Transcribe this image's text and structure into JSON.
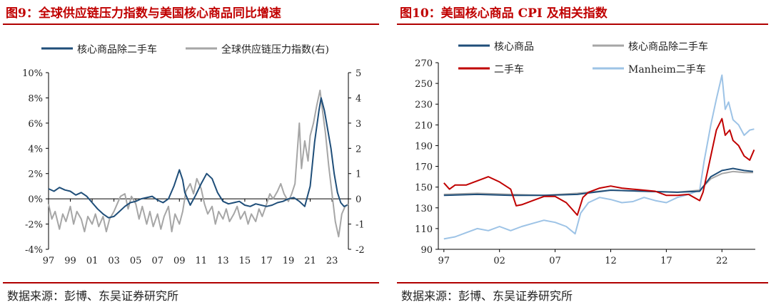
{
  "left": {
    "title": "图9：全球供应链压力指数与美国核心商品同比增速",
    "source": "数据来源：彭博、东吴证券研究所",
    "colors": {
      "series1": "#1f4e79",
      "series2": "#a6a6a6",
      "title": "#c00000"
    },
    "chart_data": {
      "type": "line",
      "title": "图9：全球供应链压力指数与美国核心商品同比增速",
      "x_range": [
        1997,
        2024.5
      ],
      "x_ticks": [
        "97",
        "99",
        "01",
        "03",
        "05",
        "07",
        "09",
        "11",
        "13",
        "15",
        "17",
        "19",
        "21",
        "23"
      ],
      "y_left": {
        "range": [
          -4,
          10
        ],
        "ticks": [
          "-4%",
          "-2%",
          "0%",
          "2%",
          "4%",
          "6%",
          "8%",
          "10%"
        ]
      },
      "y_right": {
        "range": [
          -2,
          5
        ],
        "ticks": [
          "-2",
          "-1",
          "0",
          "1",
          "2",
          "3",
          "4",
          "5"
        ]
      },
      "legend_position": "top",
      "series": [
        {
          "name": "核心商品除二手车",
          "axis": "left",
          "points": [
            [
              1997.0,
              0.8
            ],
            [
              1997.5,
              0.6
            ],
            [
              1998.0,
              0.9
            ],
            [
              1998.5,
              0.7
            ],
            [
              1999.0,
              0.6
            ],
            [
              1999.5,
              0.3
            ],
            [
              2000.0,
              0.5
            ],
            [
              2000.5,
              0.2
            ],
            [
              2001.0,
              -0.3
            ],
            [
              2001.5,
              -0.8
            ],
            [
              2002.0,
              -1.2
            ],
            [
              2002.5,
              -1.5
            ],
            [
              2003.0,
              -1.4
            ],
            [
              2003.5,
              -1.0
            ],
            [
              2004.0,
              -0.6
            ],
            [
              2004.5,
              -0.3
            ],
            [
              2005.0,
              -0.2
            ],
            [
              2005.5,
              0.0
            ],
            [
              2006.0,
              0.1
            ],
            [
              2006.5,
              0.2
            ],
            [
              2007.0,
              -0.1
            ],
            [
              2007.5,
              -0.3
            ],
            [
              2008.0,
              0.0
            ],
            [
              2008.5,
              1.0
            ],
            [
              2009.0,
              2.3
            ],
            [
              2009.3,
              1.5
            ],
            [
              2009.5,
              0.5
            ],
            [
              2010.0,
              -0.5
            ],
            [
              2010.5,
              0.3
            ],
            [
              2011.0,
              1.2
            ],
            [
              2011.5,
              2.0
            ],
            [
              2012.0,
              1.6
            ],
            [
              2012.5,
              0.5
            ],
            [
              2013.0,
              -0.2
            ],
            [
              2013.5,
              -0.4
            ],
            [
              2014.0,
              -0.3
            ],
            [
              2014.5,
              -0.2
            ],
            [
              2015.0,
              -0.5
            ],
            [
              2015.5,
              -0.6
            ],
            [
              2016.0,
              -0.4
            ],
            [
              2016.5,
              -0.5
            ],
            [
              2017.0,
              -0.6
            ],
            [
              2017.5,
              -0.5
            ],
            [
              2018.0,
              -0.3
            ],
            [
              2018.5,
              -0.2
            ],
            [
              2019.0,
              0.0
            ],
            [
              2019.5,
              0.1
            ],
            [
              2020.0,
              -0.2
            ],
            [
              2020.5,
              -0.6
            ],
            [
              2021.0,
              1.0
            ],
            [
              2021.4,
              4.5
            ],
            [
              2021.8,
              7.0
            ],
            [
              2022.0,
              8.0
            ],
            [
              2022.3,
              7.0
            ],
            [
              2022.6,
              5.5
            ],
            [
              2022.9,
              4.0
            ],
            [
              2023.2,
              2.0
            ],
            [
              2023.5,
              0.5
            ],
            [
              2023.8,
              -0.3
            ],
            [
              2024.1,
              -0.6
            ],
            [
              2024.4,
              -0.5
            ]
          ]
        },
        {
          "name": "全球供应链压力指数(右)",
          "axis": "right",
          "points": [
            [
              1997.0,
              -0.2
            ],
            [
              1997.3,
              -0.8
            ],
            [
              1997.6,
              -0.5
            ],
            [
              1998.0,
              -1.2
            ],
            [
              1998.3,
              -0.6
            ],
            [
              1998.6,
              -0.9
            ],
            [
              1999.0,
              -0.3
            ],
            [
              1999.3,
              -1.0
            ],
            [
              1999.6,
              -0.5
            ],
            [
              2000.0,
              -0.8
            ],
            [
              2000.3,
              -1.3
            ],
            [
              2000.6,
              -0.7
            ],
            [
              2001.0,
              -1.0
            ],
            [
              2001.3,
              -0.6
            ],
            [
              2001.6,
              -1.1
            ],
            [
              2002.0,
              -0.7
            ],
            [
              2002.3,
              -1.3
            ],
            [
              2002.6,
              -0.8
            ],
            [
              2003.0,
              -0.5
            ],
            [
              2003.3,
              -0.2
            ],
            [
              2003.6,
              0.1
            ],
            [
              2004.0,
              0.2
            ],
            [
              2004.3,
              -0.4
            ],
            [
              2004.6,
              0.1
            ],
            [
              2005.0,
              -0.2
            ],
            [
              2005.3,
              -0.8
            ],
            [
              2005.6,
              -0.3
            ],
            [
              2006.0,
              -1.0
            ],
            [
              2006.3,
              -0.5
            ],
            [
              2006.6,
              -1.1
            ],
            [
              2007.0,
              -0.6
            ],
            [
              2007.3,
              -1.2
            ],
            [
              2007.6,
              -0.7
            ],
            [
              2008.0,
              -0.3
            ],
            [
              2008.3,
              -1.3
            ],
            [
              2008.6,
              -0.6
            ],
            [
              2009.0,
              -1.0
            ],
            [
              2009.3,
              -0.5
            ],
            [
              2009.6,
              0.3
            ],
            [
              2010.0,
              0.6
            ],
            [
              2010.3,
              0.2
            ],
            [
              2010.6,
              0.8
            ],
            [
              2011.0,
              0.4
            ],
            [
              2011.3,
              -0.2
            ],
            [
              2011.6,
              -0.6
            ],
            [
              2012.0,
              -0.3
            ],
            [
              2012.3,
              -1.0
            ],
            [
              2012.6,
              -0.5
            ],
            [
              2013.0,
              -0.8
            ],
            [
              2013.3,
              -0.4
            ],
            [
              2013.6,
              -0.9
            ],
            [
              2014.0,
              -0.6
            ],
            [
              2014.3,
              -0.3
            ],
            [
              2014.6,
              -0.8
            ],
            [
              2015.0,
              -0.5
            ],
            [
              2015.3,
              -1.0
            ],
            [
              2015.6,
              -0.6
            ],
            [
              2016.0,
              -0.9
            ],
            [
              2016.3,
              -0.4
            ],
            [
              2016.6,
              -0.7
            ],
            [
              2017.0,
              -0.2
            ],
            [
              2017.3,
              0.2
            ],
            [
              2017.6,
              0.0
            ],
            [
              2018.0,
              0.3
            ],
            [
              2018.3,
              0.6
            ],
            [
              2018.6,
              0.2
            ],
            [
              2019.0,
              -0.1
            ],
            [
              2019.3,
              0.2
            ],
            [
              2019.6,
              0.6
            ],
            [
              2020.0,
              3.0
            ],
            [
              2020.2,
              1.2
            ],
            [
              2020.5,
              2.3
            ],
            [
              2020.8,
              1.5
            ],
            [
              2021.0,
              2.5
            ],
            [
              2021.3,
              3.0
            ],
            [
              2021.6,
              3.7
            ],
            [
              2021.9,
              4.3
            ],
            [
              2022.1,
              3.6
            ],
            [
              2022.4,
              2.6
            ],
            [
              2022.7,
              1.3
            ],
            [
              2023.0,
              0.2
            ],
            [
              2023.3,
              -0.9
            ],
            [
              2023.6,
              -1.5
            ],
            [
              2023.9,
              -0.6
            ],
            [
              2024.2,
              -0.3
            ],
            [
              2024.5,
              -0.2
            ]
          ]
        }
      ]
    }
  },
  "right": {
    "title": "图10：美国核心商品 CPI 及相关指数",
    "source": "数据来源：彭博、东吴证券研究所",
    "colors": {
      "core": "#1f4e79",
      "core_ex": "#a6a6a6",
      "used": "#c00000",
      "manheim": "#9dc3e6",
      "title": "#c00000"
    },
    "chart_data": {
      "type": "line",
      "title": "图10：美国核心商品 CPI 及相关指数",
      "x_range": [
        1996.5,
        2025
      ],
      "x_ticks": [
        {
          "label": "97",
          "x": 1997
        },
        {
          "label": "02",
          "x": 2002
        },
        {
          "label": "07",
          "x": 2007
        },
        {
          "label": "12",
          "x": 2012
        },
        {
          "label": "17",
          "x": 2017
        },
        {
          "label": "22",
          "x": 2022
        }
      ],
      "y_range": [
        90,
        270
      ],
      "y_ticks": [
        "90",
        "110",
        "130",
        "150",
        "170",
        "190",
        "210",
        "230",
        "250",
        "270"
      ],
      "legend_position": "top",
      "series": [
        {
          "name": "核心商品",
          "points": [
            [
              1997,
              142
            ],
            [
              2000,
              143
            ],
            [
              2003,
              142
            ],
            [
              2006,
              142
            ],
            [
              2009,
              143
            ],
            [
              2012,
              147
            ],
            [
              2015,
              146
            ],
            [
              2018,
              145
            ],
            [
              2020,
              146
            ],
            [
              2021,
              160
            ],
            [
              2022,
              166
            ],
            [
              2023,
              168
            ],
            [
              2024,
              166
            ],
            [
              2024.8,
              165
            ]
          ]
        },
        {
          "name": "核心商品除二手车",
          "points": [
            [
              1997,
              143
            ],
            [
              2000,
              144
            ],
            [
              2003,
              143
            ],
            [
              2006,
              142
            ],
            [
              2009,
              144
            ],
            [
              2012,
              147
            ],
            [
              2015,
              146
            ],
            [
              2018,
              145
            ],
            [
              2020,
              147
            ],
            [
              2021,
              158
            ],
            [
              2022,
              163
            ],
            [
              2023,
              165
            ],
            [
              2024,
              164
            ],
            [
              2024.8,
              164
            ]
          ]
        },
        {
          "name": "二手车",
          "points": [
            [
              1997,
              154
            ],
            [
              1997.5,
              148
            ],
            [
              1998,
              152
            ],
            [
              1999,
              152
            ],
            [
              2000,
              156
            ],
            [
              2001,
              160
            ],
            [
              2002,
              155
            ],
            [
              2003,
              148
            ],
            [
              2003.5,
              132
            ],
            [
              2004,
              133
            ],
            [
              2005,
              137
            ],
            [
              2006,
              141
            ],
            [
              2007,
              141
            ],
            [
              2008,
              135
            ],
            [
              2009,
              123
            ],
            [
              2009.5,
              140
            ],
            [
              2010,
              145
            ],
            [
              2011,
              149
            ],
            [
              2012,
              151
            ],
            [
              2013,
              149
            ],
            [
              2014,
              148
            ],
            [
              2015,
              147
            ],
            [
              2016,
              146
            ],
            [
              2017,
              142
            ],
            [
              2018,
              142
            ],
            [
              2019,
              143
            ],
            [
              2020,
              137
            ],
            [
              2020.3,
              145
            ],
            [
              2021,
              180
            ],
            [
              2021.5,
              205
            ],
            [
              2022,
              216
            ],
            [
              2022.3,
              200
            ],
            [
              2022.7,
              205
            ],
            [
              2023,
              195
            ],
            [
              2023.5,
              190
            ],
            [
              2024,
              180
            ],
            [
              2024.5,
              176
            ],
            [
              2024.9,
              186
            ]
          ]
        },
        {
          "name": "Manheim二手车",
          "points": [
            [
              1997,
              100
            ],
            [
              1998,
              102
            ],
            [
              1999,
              106
            ],
            [
              2000,
              110
            ],
            [
              2001,
              108
            ],
            [
              2002,
              112
            ],
            [
              2003,
              108
            ],
            [
              2004,
              112
            ],
            [
              2005,
              115
            ],
            [
              2006,
              118
            ],
            [
              2007,
              116
            ],
            [
              2008,
              112
            ],
            [
              2008.8,
              105
            ],
            [
              2009.3,
              125
            ],
            [
              2010,
              135
            ],
            [
              2011,
              140
            ],
            [
              2012,
              138
            ],
            [
              2013,
              135
            ],
            [
              2014,
              136
            ],
            [
              2015,
              140
            ],
            [
              2016,
              137
            ],
            [
              2017,
              135
            ],
            [
              2018,
              140
            ],
            [
              2019,
              143
            ],
            [
              2020,
              147
            ],
            [
              2020.4,
              175
            ],
            [
              2021,
              210
            ],
            [
              2021.5,
              235
            ],
            [
              2022,
              258
            ],
            [
              2022.3,
              225
            ],
            [
              2022.6,
              232
            ],
            [
              2023,
              215
            ],
            [
              2023.5,
              210
            ],
            [
              2024,
              200
            ],
            [
              2024.5,
              205
            ],
            [
              2024.9,
              206
            ]
          ]
        }
      ]
    }
  }
}
